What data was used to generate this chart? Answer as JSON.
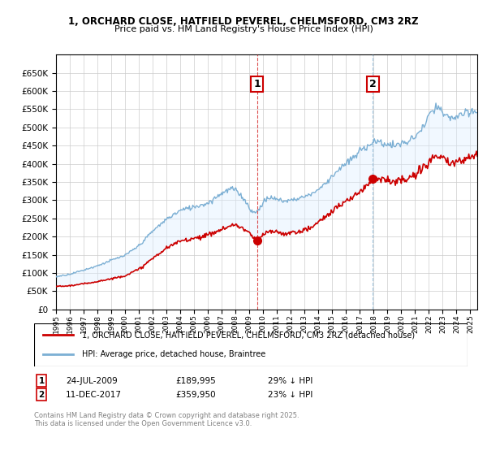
{
  "title": "1, ORCHARD CLOSE, HATFIELD PEVEREL, CHELMSFORD, CM3 2RZ",
  "subtitle": "Price paid vs. HM Land Registry's House Price Index (HPI)",
  "footnote": "Contains HM Land Registry data © Crown copyright and database right 2025.\nThis data is licensed under the Open Government Licence v3.0.",
  "legend_line1": "1, ORCHARD CLOSE, HATFIELD PEVEREL, CHELMSFORD, CM3 2RZ (detached house)",
  "legend_line2": "HPI: Average price, detached house, Braintree",
  "transaction1_label": "1",
  "transaction1_date": "24-JUL-2009",
  "transaction1_price": "£189,995",
  "transaction1_hpi": "29% ↓ HPI",
  "transaction1_x": 2009.56,
  "transaction1_y": 189995,
  "transaction2_label": "2",
  "transaction2_date": "11-DEC-2017",
  "transaction2_price": "£359,950",
  "transaction2_hpi": "23% ↓ HPI",
  "transaction2_x": 2017.94,
  "transaction2_y": 359950,
  "red_color": "#cc0000",
  "blue_color": "#7bafd4",
  "shading_color": "#ddeeff",
  "grid_color": "#cccccc",
  "background_color": "#ffffff",
  "ylim": [
    0,
    700000
  ],
  "xlim_start": 1995.0,
  "xlim_end": 2025.5,
  "yticks": [
    0,
    50000,
    100000,
    150000,
    200000,
    250000,
    300000,
    350000,
    400000,
    450000,
    500000,
    550000,
    600000,
    650000
  ],
  "xticks": [
    1995,
    1996,
    1997,
    1998,
    1999,
    2000,
    2001,
    2002,
    2003,
    2004,
    2005,
    2006,
    2007,
    2008,
    2009,
    2010,
    2011,
    2012,
    2013,
    2014,
    2015,
    2016,
    2017,
    2018,
    2019,
    2020,
    2021,
    2022,
    2023,
    2024,
    2025
  ]
}
